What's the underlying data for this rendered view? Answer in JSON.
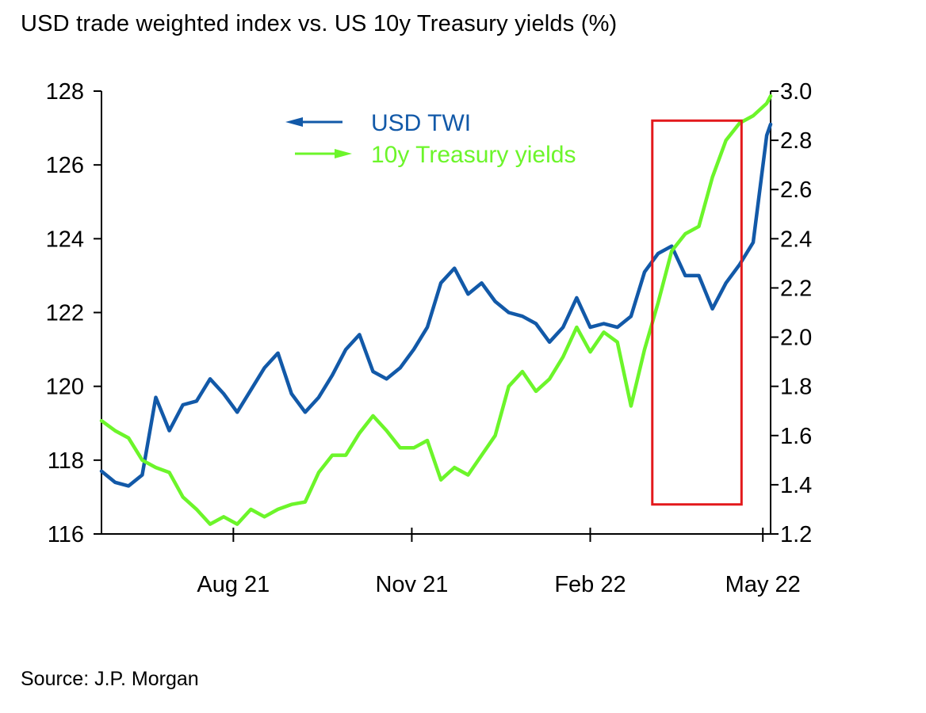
{
  "title": "USD trade weighted index vs. US 10y Treasury yields (%)",
  "source": "Source: J.P. Morgan",
  "colors": {
    "usd": "#1259a8",
    "yield": "#6cf52a",
    "highlight": "#e3191c",
    "axis": "#000000"
  },
  "chart_data": {
    "type": "line",
    "title": "USD trade weighted index vs. US 10y Treasury yields (%)",
    "x_ticks": [
      "Aug 21",
      "Nov 21",
      "Feb 22",
      "May 22"
    ],
    "x_range": [
      "2021-05-25",
      "2022-05-05"
    ],
    "x_tick_dates": [
      "2021-08-01",
      "2021-11-01",
      "2022-02-01",
      "2022-05-01"
    ],
    "y_left": {
      "range": [
        116,
        128
      ],
      "ticks": [
        "116",
        "118",
        "120",
        "122",
        "124",
        "126",
        "128"
      ]
    },
    "y_right": {
      "range": [
        1.2,
        3.0
      ],
      "ticks": [
        "1.2",
        "1.4",
        "1.6",
        "1.8",
        "2.0",
        "2.2",
        "2.4",
        "2.6",
        "2.8",
        "3.0"
      ]
    },
    "legend": [
      "USD TWI",
      "10y Treasury yields"
    ],
    "legend_position": "top-center",
    "grid": false,
    "highlight_box": {
      "x_start": "2022-03-05",
      "x_end": "2022-04-20",
      "y_left_start": 116.8,
      "y_left_end": 127.2
    },
    "series": [
      {
        "name": "USD TWI",
        "axis": "left",
        "x": [
          "2021-05-25",
          "2021-06-01",
          "2021-06-08",
          "2021-06-15",
          "2021-06-22",
          "2021-06-29",
          "2021-07-06",
          "2021-07-13",
          "2021-07-20",
          "2021-07-27",
          "2021-08-03",
          "2021-08-10",
          "2021-08-17",
          "2021-08-24",
          "2021-08-31",
          "2021-09-07",
          "2021-09-14",
          "2021-09-21",
          "2021-09-28",
          "2021-10-05",
          "2021-10-12",
          "2021-10-19",
          "2021-10-26",
          "2021-11-02",
          "2021-11-09",
          "2021-11-16",
          "2021-11-23",
          "2021-11-30",
          "2021-12-07",
          "2021-12-14",
          "2021-12-21",
          "2021-12-28",
          "2022-01-04",
          "2022-01-11",
          "2022-01-18",
          "2022-01-25",
          "2022-02-01",
          "2022-02-08",
          "2022-02-15",
          "2022-02-22",
          "2022-03-01",
          "2022-03-08",
          "2022-03-15",
          "2022-03-22",
          "2022-03-29",
          "2022-04-05",
          "2022-04-12",
          "2022-04-19",
          "2022-04-26",
          "2022-05-03",
          "2022-05-05"
        ],
        "values": [
          117.7,
          117.4,
          117.3,
          117.6,
          119.7,
          118.8,
          119.5,
          119.6,
          120.2,
          119.8,
          119.3,
          119.9,
          120.5,
          120.9,
          119.8,
          119.3,
          119.7,
          120.3,
          121.0,
          121.4,
          120.4,
          120.2,
          120.5,
          121.0,
          121.6,
          122.8,
          123.2,
          122.5,
          122.8,
          122.3,
          122.0,
          121.9,
          121.7,
          121.2,
          121.6,
          122.4,
          121.6,
          121.7,
          121.6,
          121.9,
          123.1,
          123.6,
          123.8,
          123.0,
          123.0,
          122.1,
          122.8,
          123.3,
          123.9,
          126.8,
          127.1
        ]
      },
      {
        "name": "10y Treasury yields",
        "axis": "right",
        "x": [
          "2021-05-25",
          "2021-06-01",
          "2021-06-08",
          "2021-06-15",
          "2021-06-22",
          "2021-06-29",
          "2021-07-06",
          "2021-07-13",
          "2021-07-20",
          "2021-07-27",
          "2021-08-03",
          "2021-08-10",
          "2021-08-17",
          "2021-08-24",
          "2021-08-31",
          "2021-09-07",
          "2021-09-14",
          "2021-09-21",
          "2021-09-28",
          "2021-10-05",
          "2021-10-12",
          "2021-10-19",
          "2021-10-26",
          "2021-11-02",
          "2021-11-09",
          "2021-11-16",
          "2021-11-23",
          "2021-11-30",
          "2021-12-07",
          "2021-12-14",
          "2021-12-21",
          "2021-12-28",
          "2022-01-04",
          "2022-01-11",
          "2022-01-18",
          "2022-01-25",
          "2022-02-01",
          "2022-02-08",
          "2022-02-15",
          "2022-02-22",
          "2022-03-01",
          "2022-03-08",
          "2022-03-15",
          "2022-03-22",
          "2022-03-29",
          "2022-04-05",
          "2022-04-12",
          "2022-04-19",
          "2022-04-26",
          "2022-05-03",
          "2022-05-05"
        ],
        "values": [
          1.66,
          1.62,
          1.59,
          1.5,
          1.47,
          1.45,
          1.35,
          1.3,
          1.24,
          1.27,
          1.24,
          1.3,
          1.27,
          1.3,
          1.32,
          1.33,
          1.45,
          1.52,
          1.52,
          1.61,
          1.68,
          1.62,
          1.55,
          1.55,
          1.58,
          1.42,
          1.47,
          1.44,
          1.52,
          1.6,
          1.8,
          1.86,
          1.78,
          1.83,
          1.92,
          2.04,
          1.94,
          2.02,
          1.98,
          1.72,
          1.95,
          2.14,
          2.35,
          2.42,
          2.45,
          2.65,
          2.8,
          2.87,
          2.9,
          2.95,
          2.98
        ]
      }
    ]
  }
}
